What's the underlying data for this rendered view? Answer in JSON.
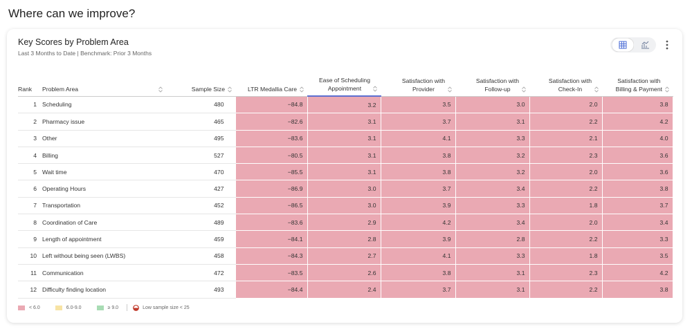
{
  "page_title": "Where can we improve?",
  "card": {
    "title": "Key Scores by Problem Area",
    "subtitle": "Last 3 Months to Date | Benchmark: Prior 3 Months"
  },
  "table": {
    "columns": [
      {
        "lines": [
          "Rank"
        ]
      },
      {
        "lines": [
          "Problem Area"
        ]
      },
      {
        "lines": [
          "Sample Size"
        ]
      },
      {
        "lines": [
          "LTR Medallia Care"
        ]
      },
      {
        "lines": [
          "Ease of Scheduling",
          "Appointment"
        ]
      },
      {
        "lines": [
          "Satisfaction with",
          "Provider"
        ]
      },
      {
        "lines": [
          "Satisfaction with",
          "Follow-up"
        ]
      },
      {
        "lines": [
          "Satisfaction with",
          "Check-In"
        ]
      },
      {
        "lines": [
          "Satisfaction with",
          "Billing & Payment"
        ]
      }
    ],
    "rows": [
      [
        "1",
        "Scheduling",
        "480",
        "−84.8",
        "3.2",
        "3.5",
        "3.0",
        "2.0",
        "3.8"
      ],
      [
        "2",
        "Pharmacy issue",
        "465",
        "−82.6",
        "3.1",
        "3.7",
        "3.1",
        "2.2",
        "4.2"
      ],
      [
        "3",
        "Other",
        "495",
        "−83.6",
        "3.1",
        "4.1",
        "3.3",
        "2.1",
        "4.0"
      ],
      [
        "4",
        "Billing",
        "527",
        "−80.5",
        "3.1",
        "3.8",
        "3.2",
        "2.3",
        "3.6"
      ],
      [
        "5",
        "Wait time",
        "470",
        "−85.5",
        "3.1",
        "3.8",
        "3.2",
        "2.0",
        "3.6"
      ],
      [
        "6",
        "Operating Hours",
        "427",
        "−86.9",
        "3.0",
        "3.7",
        "3.4",
        "2.2",
        "3.8"
      ],
      [
        "7",
        "Transportation",
        "452",
        "−86.5",
        "3.0",
        "3.9",
        "3.3",
        "1.8",
        "3.7"
      ],
      [
        "8",
        "Coordination of Care",
        "489",
        "−83.6",
        "2.9",
        "4.2",
        "3.4",
        "2.0",
        "3.4"
      ],
      [
        "9",
        "Length of appointment",
        "459",
        "−84.1",
        "2.8",
        "3.9",
        "2.8",
        "2.2",
        "3.3"
      ],
      [
        "10",
        "Left without being seen (LWBS)",
        "458",
        "−84.3",
        "2.7",
        "4.1",
        "3.3",
        "1.8",
        "3.5"
      ],
      [
        "11",
        "Communication",
        "472",
        "−83.5",
        "2.6",
        "3.8",
        "3.1",
        "2.3",
        "4.2"
      ],
      [
        "12",
        "Difficulty finding location",
        "493",
        "−84.4",
        "2.4",
        "3.7",
        "3.1",
        "2.2",
        "3.8"
      ]
    ]
  },
  "legend": [
    {
      "label": "< 6.0",
      "color": "#eaa9b3"
    },
    {
      "label": "6.0-9.0",
      "color": "#f7e3a4"
    },
    {
      "label": "≥ 9.0",
      "color": "#a8dcb4"
    }
  ],
  "low_sample_note": "Low sample size < 25"
}
